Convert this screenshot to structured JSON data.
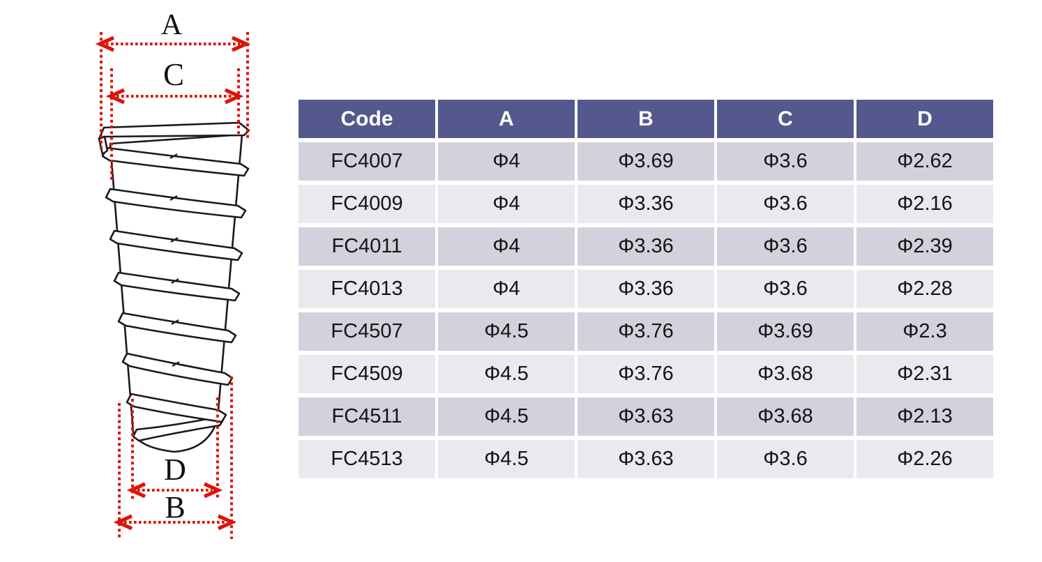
{
  "diagram": {
    "labels": {
      "a": "A",
      "c": "C",
      "d": "D",
      "b": "B"
    },
    "accent_color": "#dd1408",
    "line_color": "#1a1a1a"
  },
  "table": {
    "headers": [
      "Code",
      "A",
      "B",
      "C",
      "D"
    ],
    "rows": [
      [
        "FC4007",
        "Φ4",
        "Φ3.69",
        "Φ3.6",
        "Φ2.62"
      ],
      [
        "FC4009",
        "Φ4",
        "Φ3.36",
        "Φ3.6",
        "Φ2.16"
      ],
      [
        "FC4011",
        "Φ4",
        "Φ3.36",
        "Φ3.6",
        "Φ2.39"
      ],
      [
        "FC4013",
        "Φ4",
        "Φ3.36",
        "Φ3.6",
        "Φ2.28"
      ],
      [
        "FC4507",
        "Φ4.5",
        "Φ3.76",
        "Φ3.69",
        "Φ2.3"
      ],
      [
        "FC4509",
        "Φ4.5",
        "Φ3.76",
        "Φ3.68",
        "Φ2.31"
      ],
      [
        "FC4511",
        "Φ4.5",
        "Φ3.63",
        "Φ3.68",
        "Φ2.13"
      ],
      [
        "FC4513",
        "Φ4.5",
        "Φ3.63",
        "Φ3.6",
        "Φ2.26"
      ]
    ],
    "colors": {
      "header_bg": "#55588c",
      "header_text": "#ffffff",
      "row_dark": "#d2d2dc",
      "row_light": "#e9e9ee",
      "cell_text": "#141414"
    }
  }
}
